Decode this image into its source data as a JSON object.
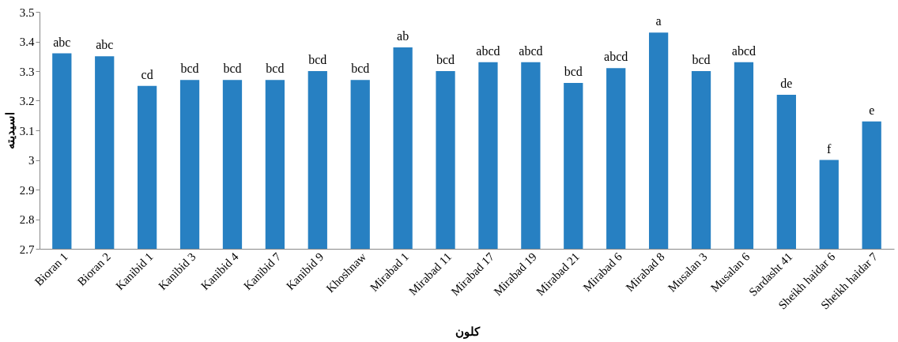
{
  "chart_data": {
    "type": "bar",
    "xlabel": "کلون",
    "ylabel": "اسیدیته",
    "categories": [
      "Bioran 1",
      "Bioran 2",
      "Kanibid 1",
      "Kanibid 3",
      "Kanibid 4",
      "Kanibid 7",
      "Kanibid 9",
      "Khoshnaw",
      "Mirabad 1",
      "Mirabad 11",
      "Mirabad 17",
      "Mirabad 19",
      "Mirabad 21",
      "Mirabad 6",
      "Mirabad 8",
      "Musalan 3",
      "Musalan 6",
      "Sardasht 41",
      "Sheikh haidar 6",
      "Sheikh haidar 7"
    ],
    "values": [
      3.36,
      3.35,
      3.25,
      3.27,
      3.27,
      3.27,
      3.3,
      3.27,
      3.38,
      3.3,
      3.33,
      3.33,
      3.26,
      3.31,
      3.43,
      3.3,
      3.33,
      3.22,
      3.0,
      3.13
    ],
    "color": "#2780c2",
    "ylim": [
      2.7,
      3.5
    ],
    "yticks": [
      2.7,
      2.8,
      2.9,
      3,
      3.1,
      3.2,
      3.3,
      3.4,
      3.5
    ],
    "grid": false,
    "annotations": [
      {
        "text": "abc",
        "x": "Bioran 1",
        "y": 3.36
      },
      {
        "text": "abc",
        "x": "Bioran 2",
        "y": 3.35
      },
      {
        "text": "cd",
        "x": "Kanibid 1",
        "y": 3.25
      },
      {
        "text": "bcd",
        "x": "Kanibid 3",
        "y": 3.27
      },
      {
        "text": "bcd",
        "x": "Kanibid 4",
        "y": 3.27
      },
      {
        "text": "bcd",
        "x": "Kanibid 7",
        "y": 3.27
      },
      {
        "text": "bcd",
        "x": "Kanibid 9",
        "y": 3.3
      },
      {
        "text": "bcd",
        "x": "Khoshnaw",
        "y": 3.27
      },
      {
        "text": "ab",
        "x": "Mirabad 1",
        "y": 3.38
      },
      {
        "text": "bcd",
        "x": "Mirabad 11",
        "y": 3.3
      },
      {
        "text": "abcd",
        "x": "Mirabad 17",
        "y": 3.33
      },
      {
        "text": "abcd",
        "x": "Mirabad 19",
        "y": 3.33
      },
      {
        "text": "bcd",
        "x": "Mirabad 21",
        "y": 3.26
      },
      {
        "text": "abcd",
        "x": "Mirabad 6",
        "y": 3.31
      },
      {
        "text": "a",
        "x": "Mirabad 8",
        "y": 3.43
      },
      {
        "text": "bcd",
        "x": "Musalan 3",
        "y": 3.3
      },
      {
        "text": "abcd",
        "x": "Musalan 6",
        "y": 3.33
      },
      {
        "text": "de",
        "x": "Sardasht 41",
        "y": 3.22
      },
      {
        "text": "f",
        "x": "Sheikh haidar 6",
        "y": 3.0
      },
      {
        "text": "e",
        "x": "Sheikh haidar 7",
        "y": 3.13
      }
    ]
  }
}
